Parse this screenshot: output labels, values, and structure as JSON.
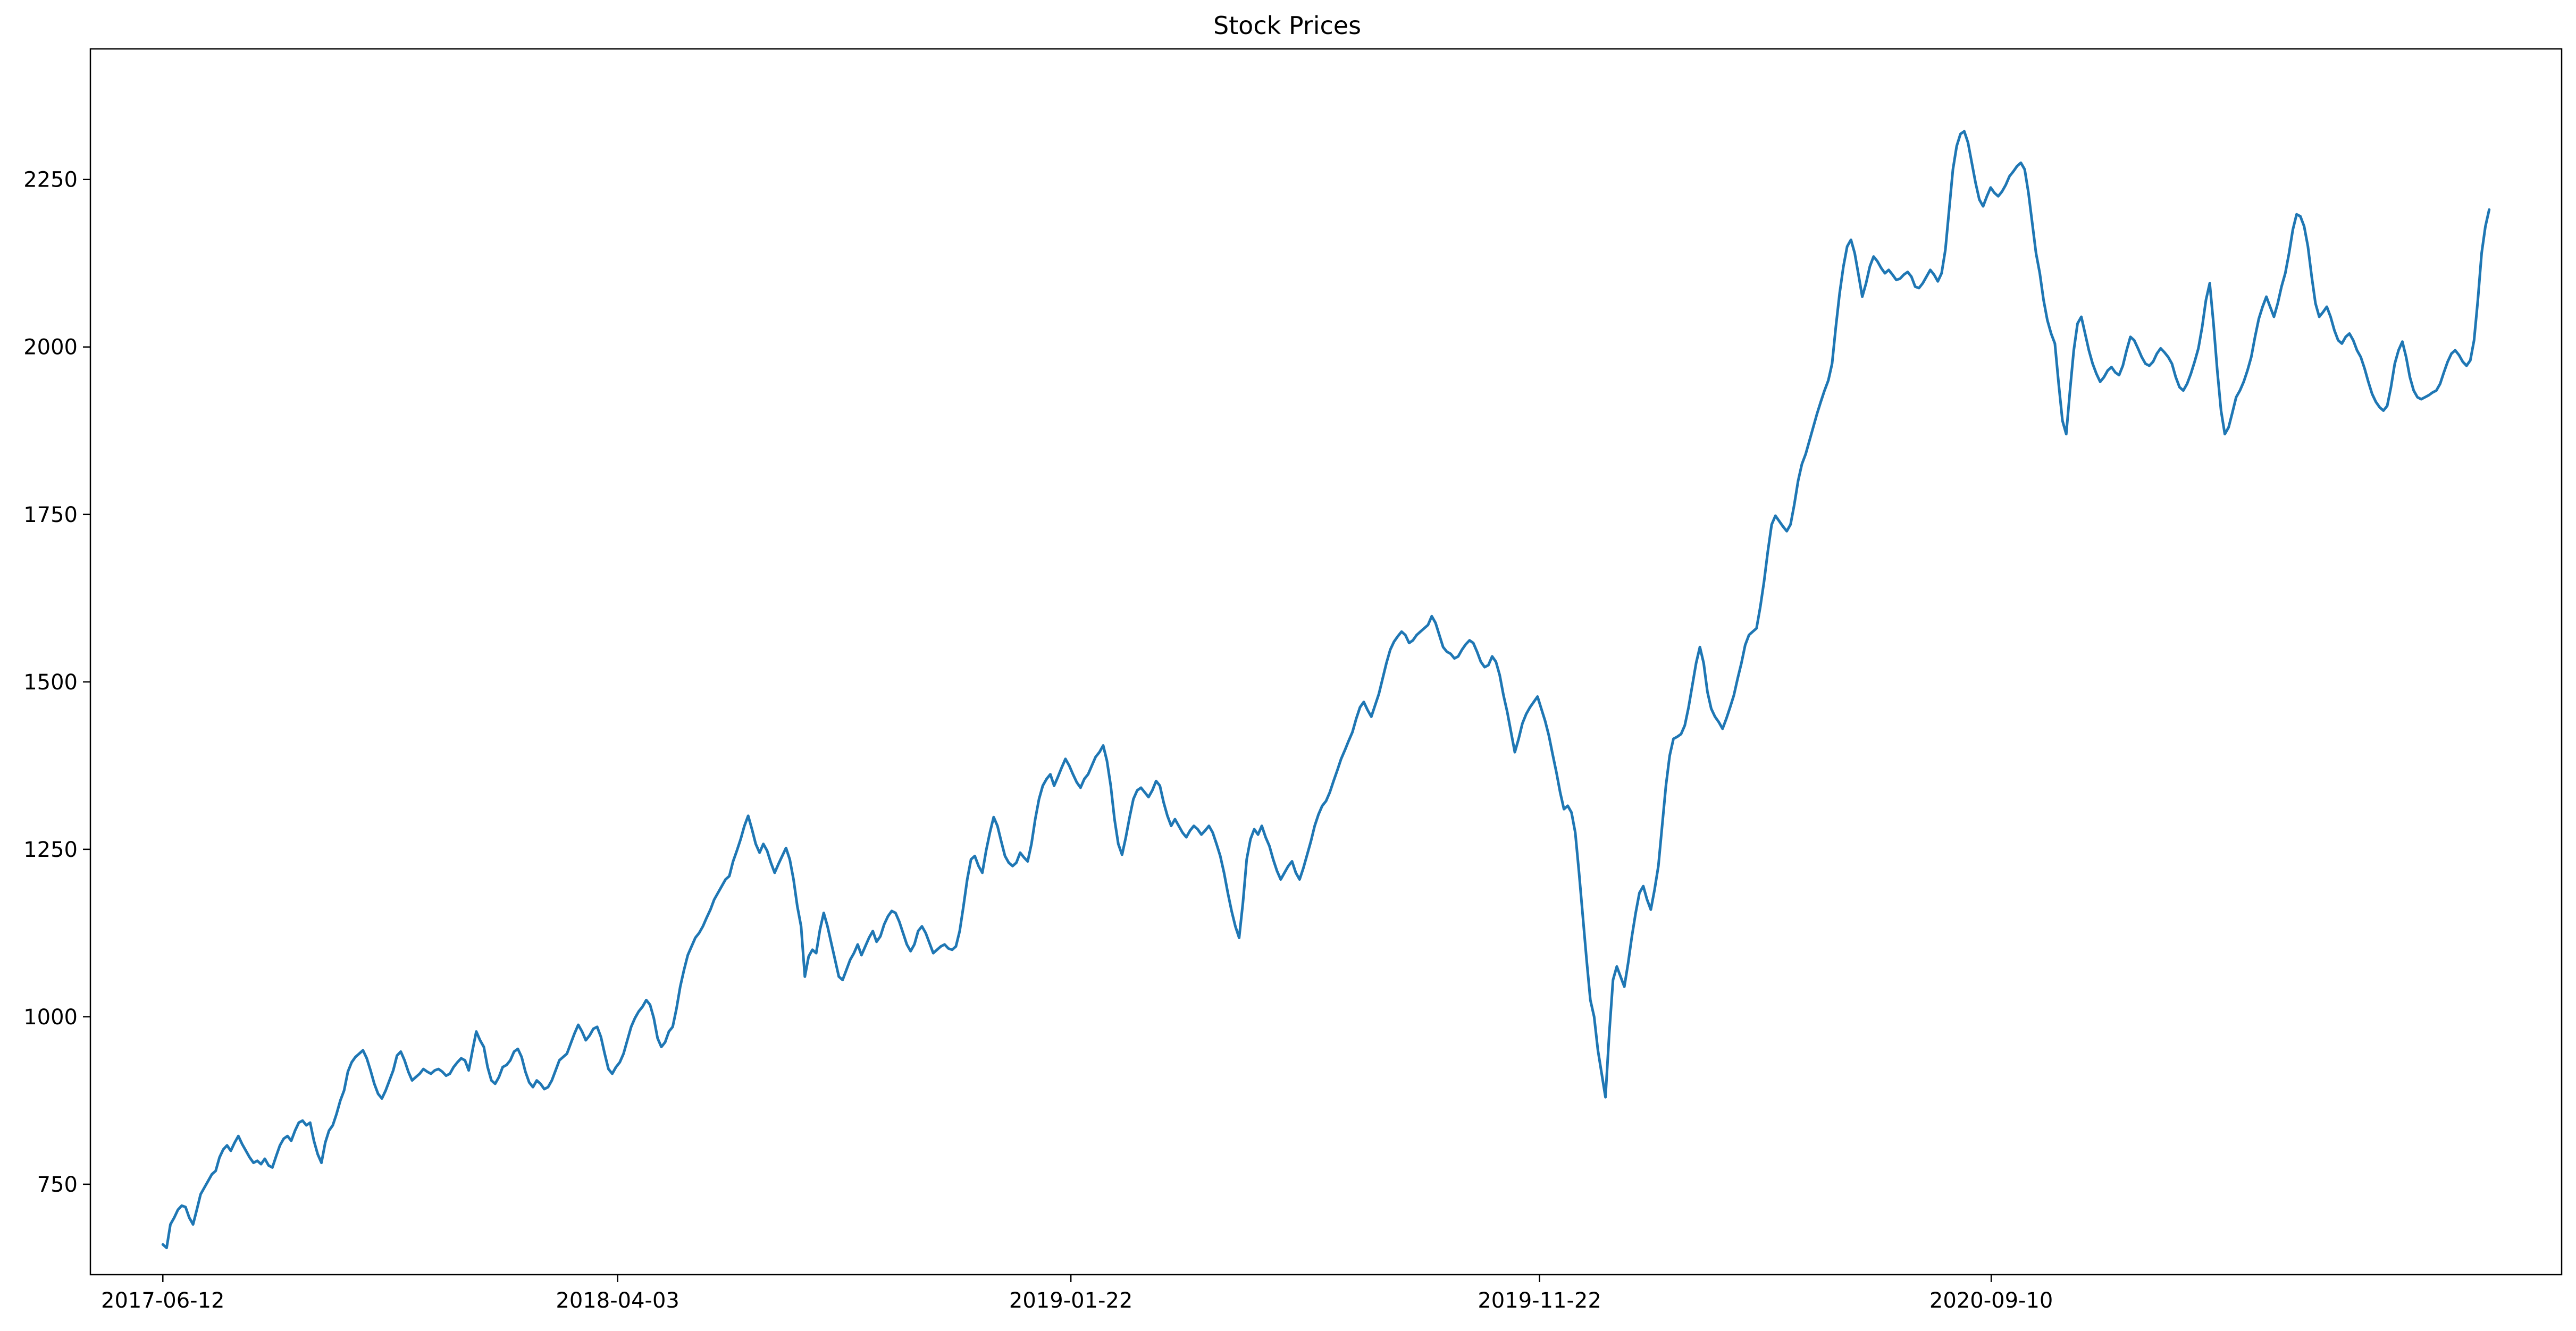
{
  "chart_data": {
    "type": "line",
    "title": "Stock Prices",
    "xlabel": "",
    "ylabel": "",
    "x_start": "2017-06-12",
    "x_end": "2021-07-30",
    "xlim": [
      "2017-04-26",
      "2021-09-15"
    ],
    "ylim": [
      615,
      2445
    ],
    "x_ticks": [
      "2017-06-12",
      "2018-04-03",
      "2019-01-22",
      "2019-11-22",
      "2020-09-10"
    ],
    "y_ticks": [
      750,
      1000,
      1250,
      1500,
      1750,
      2000,
      2250
    ],
    "grid": false,
    "legend": "none",
    "line_color": "#1f77b4",
    "series": [
      {
        "values": [
          660,
          655,
          690,
          700,
          712,
          718,
          716,
          700,
          690,
          712,
          735,
          745,
          755,
          765,
          770,
          790,
          802,
          808,
          800,
          812,
          822,
          810,
          800,
          790,
          782,
          785,
          780,
          788,
          778,
          775,
          792,
          808,
          818,
          822,
          815,
          830,
          842,
          845,
          838,
          842,
          815,
          795,
          782,
          812,
          830,
          838,
          855,
          875,
          890,
          918,
          932,
          940,
          945,
          950,
          938,
          920,
          900,
          885,
          878,
          890,
          905,
          920,
          942,
          948,
          935,
          918,
          905,
          910,
          915,
          922,
          918,
          915,
          920,
          922,
          918,
          912,
          915,
          925,
          932,
          938,
          935,
          920,
          950,
          978,
          965,
          955,
          925,
          905,
          900,
          910,
          925,
          928,
          935,
          948,
          952,
          940,
          918,
          902,
          895,
          905,
          900,
          892,
          895,
          905,
          920,
          935,
          940,
          945,
          960,
          975,
          988,
          978,
          965,
          972,
          982,
          985,
          970,
          945,
          922,
          915,
          925,
          932,
          945,
          965,
          985,
          998,
          1008,
          1015,
          1025,
          1018,
          998,
          968,
          955,
          962,
          978,
          985,
          1012,
          1045,
          1070,
          1092,
          1105,
          1118,
          1125,
          1135,
          1148,
          1160,
          1175,
          1185,
          1195,
          1205,
          1210,
          1232,
          1248,
          1265,
          1285,
          1300,
          1280,
          1258,
          1245,
          1258,
          1248,
          1230,
          1215,
          1228,
          1240,
          1252,
          1235,
          1205,
          1165,
          1135,
          1060,
          1090,
          1100,
          1095,
          1130,
          1155,
          1135,
          1110,
          1085,
          1060,
          1055,
          1070,
          1085,
          1095,
          1108,
          1092,
          1105,
          1118,
          1128,
          1112,
          1120,
          1138,
          1150,
          1158,
          1155,
          1142,
          1125,
          1108,
          1098,
          1108,
          1128,
          1135,
          1125,
          1110,
          1095,
          1100,
          1105,
          1108,
          1102,
          1100,
          1105,
          1128,
          1165,
          1205,
          1235,
          1240,
          1225,
          1215,
          1248,
          1275,
          1298,
          1285,
          1262,
          1240,
          1230,
          1225,
          1230,
          1245,
          1238,
          1232,
          1258,
          1295,
          1325,
          1345,
          1355,
          1362,
          1345,
          1358,
          1372,
          1385,
          1375,
          1362,
          1350,
          1342,
          1355,
          1362,
          1375,
          1388,
          1395,
          1405,
          1382,
          1345,
          1295,
          1258,
          1242,
          1268,
          1298,
          1325,
          1338,
          1342,
          1335,
          1328,
          1338,
          1352,
          1345,
          1320,
          1300,
          1285,
          1295,
          1285,
          1275,
          1268,
          1278,
          1285,
          1280,
          1272,
          1278,
          1285,
          1275,
          1258,
          1240,
          1215,
          1185,
          1158,
          1135,
          1118,
          1170,
          1235,
          1265,
          1280,
          1272,
          1285,
          1268,
          1255,
          1235,
          1218,
          1205,
          1215,
          1225,
          1232,
          1215,
          1205,
          1222,
          1242,
          1262,
          1285,
          1302,
          1315,
          1322,
          1335,
          1352,
          1368,
          1385,
          1398,
          1412,
          1425,
          1445,
          1462,
          1470,
          1458,
          1448,
          1465,
          1482,
          1505,
          1528,
          1548,
          1560,
          1568,
          1575,
          1570,
          1558,
          1562,
          1570,
          1575,
          1580,
          1585,
          1598,
          1588,
          1570,
          1552,
          1545,
          1542,
          1535,
          1538,
          1548,
          1556,
          1562,
          1558,
          1545,
          1530,
          1522,
          1525,
          1538,
          1530,
          1510,
          1480,
          1455,
          1425,
          1395,
          1415,
          1438,
          1452,
          1462,
          1470,
          1478,
          1460,
          1442,
          1420,
          1392,
          1365,
          1335,
          1310,
          1315,
          1305,
          1275,
          1215,
          1150,
          1085,
          1025,
          1000,
          950,
          915,
          880,
          975,
          1055,
          1075,
          1060,
          1045,
          1080,
          1120,
          1155,
          1185,
          1195,
          1175,
          1160,
          1190,
          1225,
          1285,
          1345,
          1390,
          1415,
          1418,
          1422,
          1435,
          1462,
          1495,
          1528,
          1552,
          1528,
          1485,
          1460,
          1448,
          1440,
          1430,
          1445,
          1462,
          1480,
          1505,
          1528,
          1555,
          1570,
          1575,
          1580,
          1612,
          1650,
          1695,
          1735,
          1748,
          1740,
          1732,
          1725,
          1735,
          1765,
          1800,
          1825,
          1840,
          1860,
          1880,
          1900,
          1918,
          1935,
          1950,
          1975,
          2030,
          2080,
          2120,
          2150,
          2160,
          2140,
          2108,
          2075,
          2095,
          2120,
          2135,
          2128,
          2118,
          2110,
          2115,
          2108,
          2100,
          2102,
          2108,
          2112,
          2105,
          2090,
          2088,
          2095,
          2105,
          2115,
          2108,
          2098,
          2110,
          2145,
          2205,
          2265,
          2300,
          2318,
          2322,
          2305,
          2275,
          2245,
          2220,
          2210,
          2225,
          2238,
          2230,
          2225,
          2232,
          2242,
          2255,
          2262,
          2270,
          2275,
          2265,
          2230,
          2185,
          2140,
          2110,
          2070,
          2040,
          2020,
          2005,
          1945,
          1890,
          1870,
          1935,
          1995,
          2035,
          2045,
          2020,
          1995,
          1975,
          1960,
          1948,
          1955,
          1965,
          1970,
          1962,
          1958,
          1972,
          1995,
          2015,
          2010,
          1998,
          1985,
          1975,
          1972,
          1978,
          1990,
          1998,
          1992,
          1985,
          1975,
          1955,
          1940,
          1935,
          1945,
          1960,
          1978,
          1998,
          2030,
          2070,
          2095,
          2035,
          1965,
          1905,
          1870,
          1880,
          1902,
          1925,
          1935,
          1948,
          1965,
          1985,
          2015,
          2042,
          2060,
          2075,
          2060,
          2045,
          2065,
          2090,
          2110,
          2140,
          2175,
          2198,
          2195,
          2180,
          2150,
          2105,
          2065,
          2045,
          2052,
          2060,
          2045,
          2025,
          2010,
          2005,
          2015,
          2020,
          2010,
          1995,
          1985,
          1968,
          1948,
          1930,
          1918,
          1910,
          1905,
          1912,
          1940,
          1975,
          1995,
          2008,
          1985,
          1955,
          1935,
          1925,
          1922,
          1925,
          1928,
          1932,
          1935,
          1945,
          1962,
          1978,
          1990,
          1995,
          1988,
          1978,
          1972,
          1980,
          2010,
          2070,
          2140,
          2180,
          2205
        ]
      }
    ]
  }
}
